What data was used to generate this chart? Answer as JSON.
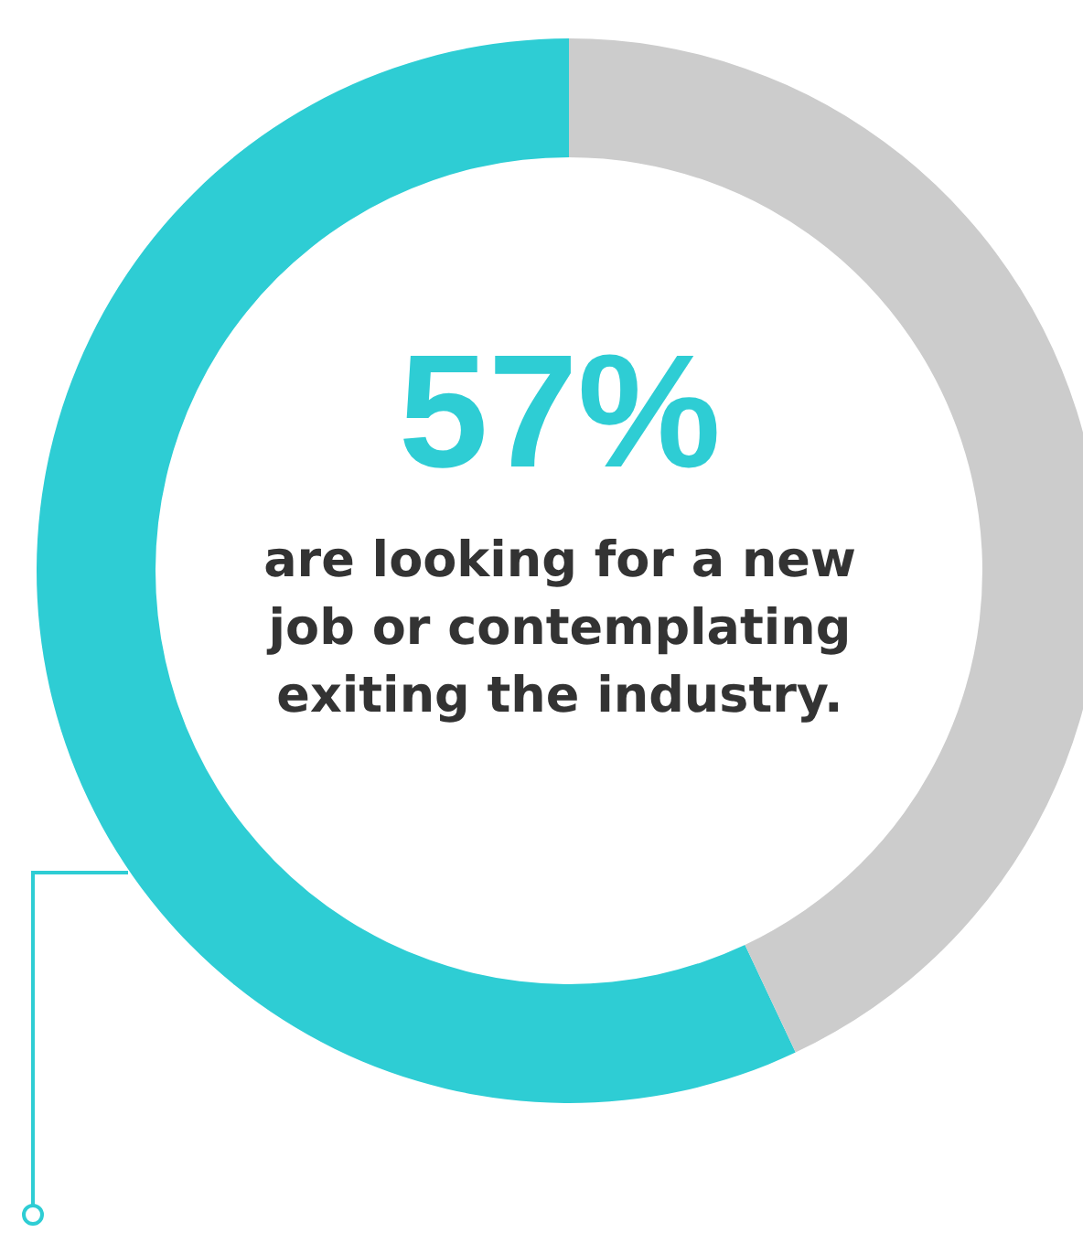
{
  "chart_data": {
    "type": "donut",
    "categories": [
      null,
      null
    ],
    "values": [
      57,
      43
    ],
    "colors": [
      "#2ecdd4",
      "#cccccc"
    ],
    "value_labels": [
      "57%",
      null
    ],
    "annotations": [
      "are looking for a new job or contemplating exiting the industry."
    ]
  }
}
